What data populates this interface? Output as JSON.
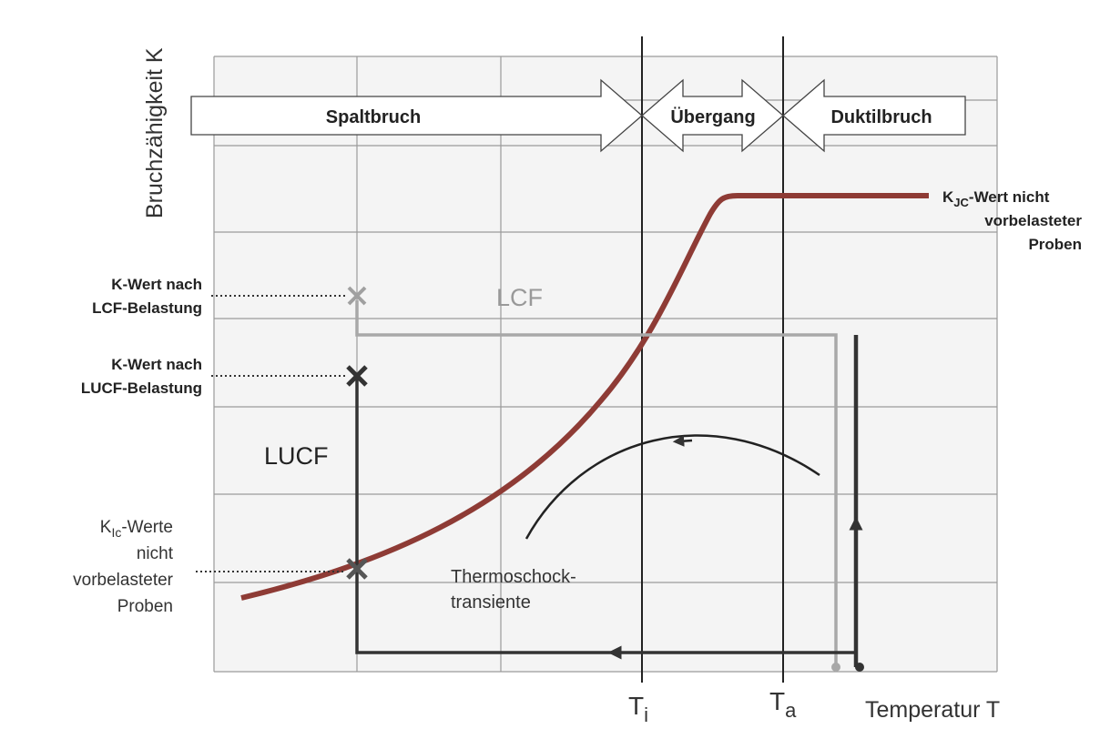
{
  "axes": {
    "y_label": "Bruchzähigkeit K",
    "x_label": "Temperatur T",
    "ti": {
      "base": "T",
      "sub": "i"
    },
    "ta": {
      "base": "T",
      "sub": "a"
    }
  },
  "regions": [
    "Spaltbruch",
    "Übergang",
    "Duktilbruch"
  ],
  "labels": {
    "kjc": {
      "base": "K",
      "sub": "JC",
      "lines": [
        "-Wert nicht",
        "vorbelasteter",
        "Proben"
      ]
    },
    "lcf_value": [
      "K-Wert nach",
      "LCF-Belastung"
    ],
    "lucf_value": [
      "K-Wert nach",
      "LUCF-Belastung"
    ],
    "kic": {
      "base": "K",
      "sub": "Ic",
      "lines": [
        "-Werte",
        "nicht",
        "vorbelasteter",
        "Proben"
      ]
    },
    "lcf": "LCF",
    "lucf": "LUCF",
    "thermoschock": [
      "Thermoschock-",
      "transiente"
    ]
  }
}
